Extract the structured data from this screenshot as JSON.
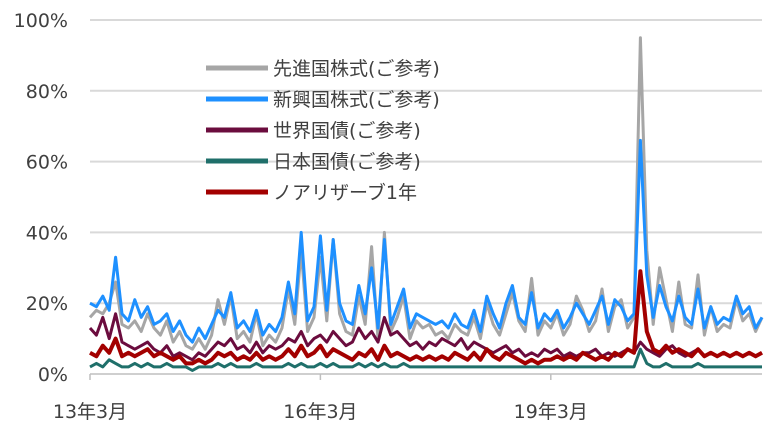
{
  "chart_data": {
    "type": "line",
    "title": "",
    "xlabel": "",
    "ylabel": "",
    "ylim": [
      0,
      100
    ],
    "y_ticks": [
      "0%",
      "20%",
      "40%",
      "60%",
      "80%",
      "100%"
    ],
    "y_tick_values": [
      0,
      20,
      40,
      60,
      80,
      100
    ],
    "x_ticks": [
      "13年3月",
      "16年3月",
      "19年3月"
    ],
    "x_tick_values": [
      0,
      36,
      72
    ],
    "xlim": [
      0,
      105
    ],
    "grid": "horizontal",
    "legend_position": "top-left",
    "series": [
      {
        "name": "先進国株式(ご参考)",
        "color": "#a6a6a6",
        "x": [
          0,
          1,
          2,
          3,
          4,
          5,
          6,
          7,
          8,
          9,
          10,
          11,
          12,
          13,
          14,
          15,
          16,
          17,
          18,
          19,
          20,
          21,
          22,
          23,
          24,
          25,
          26,
          27,
          28,
          29,
          30,
          31,
          32,
          33,
          34,
          35,
          36,
          37,
          38,
          39,
          40,
          41,
          42,
          43,
          44,
          45,
          46,
          47,
          48,
          49,
          50,
          51,
          52,
          53,
          54,
          55,
          56,
          57,
          58,
          59,
          60,
          61,
          62,
          63,
          64,
          65,
          66,
          67,
          68,
          69,
          70,
          71,
          72,
          73,
          74,
          75,
          76,
          77,
          78,
          79,
          80,
          81,
          82,
          83,
          84,
          85,
          86,
          87,
          88,
          89,
          90,
          91,
          92,
          93,
          94,
          95,
          96,
          97,
          98,
          99,
          100,
          101,
          102,
          103,
          104,
          105
        ],
        "values": [
          16,
          18,
          17,
          20,
          26,
          14,
          13,
          15,
          12,
          17,
          13,
          11,
          15,
          9,
          12,
          8,
          7,
          10,
          7,
          11,
          21,
          14,
          22,
          10,
          12,
          9,
          17,
          8,
          11,
          9,
          13,
          24,
          14,
          35,
          12,
          16,
          33,
          15,
          38,
          17,
          12,
          11,
          22,
          14,
          36,
          10,
          40,
          12,
          16,
          22,
          10,
          15,
          13,
          14,
          11,
          12,
          10,
          14,
          12,
          11,
          16,
          10,
          20,
          14,
          11,
          17,
          23,
          15,
          12,
          27,
          11,
          15,
          13,
          17,
          11,
          14,
          22,
          18,
          12,
          15,
          24,
          12,
          19,
          21,
          13,
          16,
          95,
          35,
          14,
          30,
          21,
          12,
          26,
          14,
          13,
          28,
          11,
          19,
          12,
          14,
          13,
          21,
          15,
          17,
          12,
          16
        ]
      },
      {
        "name": "新興国株式(ご参考)",
        "color": "#1e90ff",
        "x": [
          0,
          1,
          2,
          3,
          4,
          5,
          6,
          7,
          8,
          9,
          10,
          11,
          12,
          13,
          14,
          15,
          16,
          17,
          18,
          19,
          20,
          21,
          22,
          23,
          24,
          25,
          26,
          27,
          28,
          29,
          30,
          31,
          32,
          33,
          34,
          35,
          36,
          37,
          38,
          39,
          40,
          41,
          42,
          43,
          44,
          45,
          46,
          47,
          48,
          49,
          50,
          51,
          52,
          53,
          54,
          55,
          56,
          57,
          58,
          59,
          60,
          61,
          62,
          63,
          64,
          65,
          66,
          67,
          68,
          69,
          70,
          71,
          72,
          73,
          74,
          75,
          76,
          77,
          78,
          79,
          80,
          81,
          82,
          83,
          84,
          85,
          86,
          87,
          88,
          89,
          90,
          91,
          92,
          93,
          94,
          95,
          96,
          97,
          98,
          99,
          100,
          101,
          102,
          103,
          104,
          105
        ],
        "values": [
          20,
          19,
          22,
          18,
          33,
          17,
          15,
          21,
          16,
          19,
          14,
          15,
          17,
          12,
          15,
          11,
          9,
          13,
          10,
          14,
          18,
          16,
          23,
          13,
          15,
          12,
          18,
          11,
          14,
          12,
          16,
          26,
          17,
          40,
          15,
          19,
          39,
          18,
          38,
          20,
          15,
          14,
          25,
          17,
          30,
          13,
          38,
          14,
          19,
          24,
          13,
          17,
          16,
          15,
          14,
          15,
          13,
          17,
          14,
          13,
          18,
          12,
          22,
          17,
          13,
          20,
          25,
          16,
          14,
          23,
          13,
          17,
          15,
          18,
          13,
          16,
          20,
          17,
          14,
          18,
          22,
          14,
          21,
          19,
          15,
          17,
          66,
          28,
          16,
          25,
          19,
          15,
          22,
          16,
          14,
          24,
          13,
          19,
          14,
          16,
          15,
          22,
          17,
          19,
          13,
          16
        ]
      },
      {
        "name": "世界国債(ご参考)",
        "color": "#6b0c3e",
        "x": [
          0,
          1,
          2,
          3,
          4,
          5,
          6,
          7,
          8,
          9,
          10,
          11,
          12,
          13,
          14,
          15,
          16,
          17,
          18,
          19,
          20,
          21,
          22,
          23,
          24,
          25,
          26,
          27,
          28,
          29,
          30,
          31,
          32,
          33,
          34,
          35,
          36,
          37,
          38,
          39,
          40,
          41,
          42,
          43,
          44,
          45,
          46,
          47,
          48,
          49,
          50,
          51,
          52,
          53,
          54,
          55,
          56,
          57,
          58,
          59,
          60,
          61,
          62,
          63,
          64,
          65,
          66,
          67,
          68,
          69,
          70,
          71,
          72,
          73,
          74,
          75,
          76,
          77,
          78,
          79,
          80,
          81,
          82,
          83,
          84,
          85,
          86,
          87,
          88,
          89,
          90,
          91,
          92,
          93,
          94,
          95,
          96,
          97,
          98,
          99,
          100,
          101,
          102,
          103,
          104,
          105
        ],
        "values": [
          13,
          11,
          16,
          10,
          17,
          9,
          8,
          7,
          8,
          9,
          7,
          6,
          8,
          5,
          6,
          5,
          4,
          6,
          5,
          7,
          9,
          8,
          10,
          7,
          8,
          6,
          9,
          6,
          8,
          7,
          8,
          10,
          9,
          12,
          8,
          10,
          11,
          9,
          12,
          10,
          8,
          9,
          13,
          10,
          12,
          9,
          16,
          11,
          12,
          10,
          8,
          9,
          7,
          9,
          8,
          10,
          9,
          8,
          10,
          7,
          9,
          8,
          7,
          6,
          7,
          8,
          6,
          7,
          5,
          6,
          5,
          7,
          6,
          7,
          5,
          6,
          5,
          6,
          6,
          7,
          5,
          6,
          5,
          6,
          7,
          6,
          9,
          7,
          6,
          5,
          7,
          8,
          6,
          5,
          6,
          7,
          5,
          6,
          5,
          6,
          5,
          6,
          5,
          6,
          5,
          6
        ]
      },
      {
        "name": "日本国債(ご参考)",
        "color": "#1f6f6a",
        "x": [
          0,
          1,
          2,
          3,
          4,
          5,
          6,
          7,
          8,
          9,
          10,
          11,
          12,
          13,
          14,
          15,
          16,
          17,
          18,
          19,
          20,
          21,
          22,
          23,
          24,
          25,
          26,
          27,
          28,
          29,
          30,
          31,
          32,
          33,
          34,
          35,
          36,
          37,
          38,
          39,
          40,
          41,
          42,
          43,
          44,
          45,
          46,
          47,
          48,
          49,
          50,
          51,
          52,
          53,
          54,
          55,
          56,
          57,
          58,
          59,
          60,
          61,
          62,
          63,
          64,
          65,
          66,
          67,
          68,
          69,
          70,
          71,
          72,
          73,
          74,
          75,
          76,
          77,
          78,
          79,
          80,
          81,
          82,
          83,
          84,
          85,
          86,
          87,
          88,
          89,
          90,
          91,
          92,
          93,
          94,
          95,
          96,
          97,
          98,
          99,
          100,
          101,
          102,
          103,
          104,
          105
        ],
        "values": [
          2,
          3,
          2,
          4,
          3,
          2,
          2,
          3,
          2,
          3,
          2,
          2,
          3,
          2,
          2,
          2,
          1,
          2,
          2,
          2,
          3,
          2,
          3,
          2,
          2,
          2,
          3,
          2,
          2,
          2,
          2,
          3,
          2,
          3,
          2,
          2,
          3,
          2,
          3,
          2,
          2,
          2,
          3,
          2,
          3,
          2,
          3,
          2,
          2,
          3,
          2,
          2,
          2,
          2,
          2,
          2,
          2,
          2,
          2,
          2,
          2,
          2,
          2,
          2,
          2,
          2,
          2,
          2,
          2,
          2,
          2,
          2,
          2,
          2,
          2,
          2,
          2,
          2,
          2,
          2,
          2,
          2,
          2,
          2,
          2,
          2,
          7,
          3,
          2,
          2,
          3,
          2,
          2,
          2,
          2,
          3,
          2,
          2,
          2,
          2,
          2,
          2,
          2,
          2,
          2,
          2
        ]
      },
      {
        "name": "ノアリザーブ1年",
        "color": "#a30000",
        "x": [
          0,
          1,
          2,
          3,
          4,
          5,
          6,
          7,
          8,
          9,
          10,
          11,
          12,
          13,
          14,
          15,
          16,
          17,
          18,
          19,
          20,
          21,
          22,
          23,
          24,
          25,
          26,
          27,
          28,
          29,
          30,
          31,
          32,
          33,
          34,
          35,
          36,
          37,
          38,
          39,
          40,
          41,
          42,
          43,
          44,
          45,
          46,
          47,
          48,
          49,
          50,
          51,
          52,
          53,
          54,
          55,
          56,
          57,
          58,
          59,
          60,
          61,
          62,
          63,
          64,
          65,
          66,
          67,
          68,
          69,
          70,
          71,
          72,
          73,
          74,
          75,
          76,
          77,
          78,
          79,
          80,
          81,
          82,
          83,
          84,
          85,
          86,
          87,
          88,
          89,
          90,
          91,
          92,
          93,
          94,
          95,
          96,
          97,
          98,
          99,
          100,
          101,
          102,
          103,
          104,
          105
        ],
        "values": [
          6,
          5,
          8,
          6,
          10,
          5,
          6,
          5,
          6,
          7,
          5,
          6,
          5,
          4,
          5,
          3,
          3,
          4,
          3,
          4,
          6,
          5,
          6,
          4,
          5,
          4,
          6,
          4,
          5,
          4,
          5,
          7,
          5,
          8,
          5,
          6,
          8,
          5,
          7,
          6,
          5,
          4,
          6,
          5,
          7,
          4,
          8,
          5,
          6,
          5,
          4,
          5,
          4,
          5,
          4,
          5,
          4,
          6,
          5,
          4,
          6,
          4,
          7,
          5,
          4,
          6,
          5,
          4,
          3,
          4,
          3,
          4,
          4,
          5,
          4,
          5,
          4,
          6,
          5,
          4,
          5,
          4,
          6,
          5,
          7,
          6,
          29,
          12,
          7,
          6,
          8,
          6,
          7,
          6,
          5,
          7,
          5,
          6,
          5,
          6,
          5,
          6,
          5,
          6,
          5,
          6
        ]
      }
    ]
  }
}
